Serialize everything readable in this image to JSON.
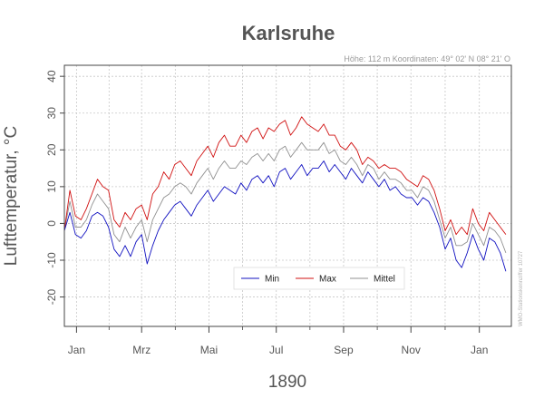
{
  "chart_data": {
    "type": "line",
    "title": "Karlsruhe",
    "subtitle": "Höhe: 112 m   Koordinaten: 49° 02' N  08° 21' O",
    "side_note": "WMO-Stationskennziffer 10727",
    "ylabel": "Lufttemperatur, °C",
    "xlabel": "1890",
    "ylim": [
      -28,
      43
    ],
    "yticks": [
      -20,
      -10,
      0,
      10,
      20,
      30,
      40
    ],
    "xlim": [
      0,
      405
    ],
    "xticks": [
      {
        "label": "Jan",
        "day": 11
      },
      {
        "label": "Mrz",
        "day": 70
      },
      {
        "label": "Mai",
        "day": 131
      },
      {
        "label": "Jul",
        "day": 192
      },
      {
        "label": "Sep",
        "day": 253
      },
      {
        "label": "Nov",
        "day": 314
      },
      {
        "label": "Jan",
        "day": 376
      }
    ],
    "grid": true,
    "legend_position": "bottom-center",
    "x_step_days": 5,
    "series": [
      {
        "name": "Min",
        "color": "#1010c0",
        "values": [
          -2,
          3,
          -3,
          -4,
          -2,
          2,
          3,
          2,
          -1,
          -7,
          -9,
          -6,
          -9,
          -5,
          -3,
          -11,
          -6,
          -2,
          1,
          3,
          5,
          6,
          4,
          2,
          5,
          7,
          9,
          6,
          8,
          10,
          9,
          8,
          11,
          9,
          12,
          13,
          11,
          13,
          10,
          14,
          15,
          12,
          14,
          16,
          13,
          15,
          15,
          17,
          14,
          16,
          14,
          12,
          15,
          13,
          11,
          14,
          12,
          10,
          12,
          9,
          10,
          8,
          7,
          7,
          5,
          7,
          6,
          3,
          -1,
          -7,
          -4,
          -10,
          -12,
          -8,
          -3,
          -7,
          -10,
          -4,
          -5,
          -8,
          -13
        ]
      },
      {
        "name": "Max",
        "color": "#d01010",
        "values": [
          -2,
          9,
          2,
          1,
          4,
          8,
          12,
          10,
          9,
          1,
          -1,
          3,
          1,
          4,
          5,
          1,
          8,
          10,
          14,
          12,
          16,
          17,
          15,
          13,
          17,
          19,
          21,
          18,
          22,
          24,
          21,
          21,
          24,
          22,
          25,
          26,
          23,
          26,
          25,
          27,
          28,
          24,
          26,
          29,
          27,
          26,
          25,
          27,
          24,
          24,
          21,
          20,
          22,
          20,
          16,
          18,
          17,
          15,
          16,
          15,
          15,
          14,
          12,
          11,
          10,
          13,
          12,
          9,
          4,
          -2,
          1,
          -3,
          -1,
          -3,
          4,
          0,
          -2,
          3,
          1,
          -1,
          -3
        ]
      },
      {
        "name": "Mittel",
        "color": "#909090",
        "values": [
          -2,
          6,
          -1,
          -1,
          1,
          5,
          8,
          6,
          4,
          -3,
          -5,
          -1,
          -4,
          -1,
          1,
          -5,
          1,
          4,
          7,
          8,
          10,
          11,
          10,
          8,
          11,
          13,
          15,
          12,
          15,
          17,
          15,
          15,
          17,
          16,
          18,
          19,
          17,
          19,
          17,
          20,
          21,
          18,
          20,
          22,
          20,
          20,
          20,
          22,
          19,
          20,
          17,
          16,
          18,
          16,
          13,
          16,
          15,
          12,
          14,
          12,
          12,
          11,
          9,
          9,
          7,
          10,
          9,
          6,
          1,
          -4,
          -1,
          -6,
          -6,
          -5,
          0,
          -3,
          -6,
          -1,
          -2,
          -4,
          -8
        ]
      }
    ]
  }
}
